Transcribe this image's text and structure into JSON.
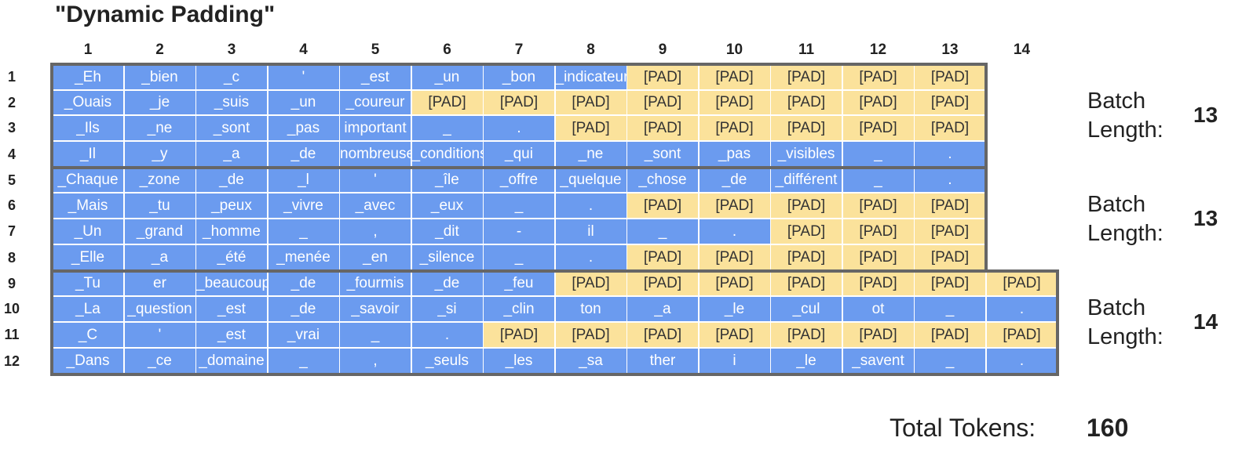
{
  "title": "\"Dynamic Padding\"",
  "colors": {
    "token": "#6b9bef",
    "pad": "#fbe29b",
    "border": "#666666"
  },
  "columns": [
    "1",
    "2",
    "3",
    "4",
    "5",
    "6",
    "7",
    "8",
    "9",
    "10",
    "11",
    "12",
    "13",
    "14"
  ],
  "rows": [
    {
      "label": "1",
      "tokens": [
        "_Eh",
        "_bien",
        "_c",
        "'",
        "_est",
        "_un",
        "_bon",
        "_indicateur",
        "[PAD]",
        "[PAD]",
        "[PAD]",
        "[PAD]",
        "[PAD]"
      ]
    },
    {
      "label": "2",
      "tokens": [
        "_Ouais",
        "_je",
        "_suis",
        "_un",
        "_coureur",
        "[PAD]",
        "[PAD]",
        "[PAD]",
        "[PAD]",
        "[PAD]",
        "[PAD]",
        "[PAD]",
        "[PAD]"
      ]
    },
    {
      "label": "3",
      "tokens": [
        "_Ils",
        "_ne",
        "_sont",
        "_pas",
        "important",
        "_",
        ".",
        "[PAD]",
        "[PAD]",
        "[PAD]",
        "[PAD]",
        "[PAD]",
        "[PAD]"
      ]
    },
    {
      "label": "4",
      "tokens": [
        "_Il",
        "_y",
        "_a",
        "_de",
        "nombreuses",
        "_conditions",
        "_qui",
        "_ne",
        "_sont",
        "_pas",
        "_visibles",
        "_",
        "."
      ]
    },
    {
      "label": "5",
      "tokens": [
        "_Chaque",
        "_zone",
        "_de",
        "_l",
        "'",
        "_île",
        "_offre",
        "_quelque",
        "_chose",
        "_de",
        "_différent",
        "_",
        "."
      ]
    },
    {
      "label": "6",
      "tokens": [
        "_Mais",
        "_tu",
        "_peux",
        "_vivre",
        "_avec",
        "_eux",
        "_",
        ".",
        "[PAD]",
        "[PAD]",
        "[PAD]",
        "[PAD]",
        "[PAD]"
      ]
    },
    {
      "label": "7",
      "tokens": [
        "_Un",
        "_grand",
        "_homme",
        "_",
        ",",
        "_dit",
        "-",
        "il",
        "_",
        ".",
        "[PAD]",
        "[PAD]",
        "[PAD]"
      ]
    },
    {
      "label": "8",
      "tokens": [
        "_Elle",
        "_a",
        "_été",
        "_menée",
        "_en",
        "_silence",
        "_",
        ".",
        "[PAD]",
        "[PAD]",
        "[PAD]",
        "[PAD]",
        "[PAD]"
      ]
    },
    {
      "label": "9",
      "tokens": [
        "_Tu",
        "er",
        "_beaucoup",
        "_de",
        "_fourmis",
        "_de",
        "_feu",
        "[PAD]",
        "[PAD]",
        "[PAD]",
        "[PAD]",
        "[PAD]",
        "[PAD]",
        "[PAD]"
      ]
    },
    {
      "label": "10",
      "tokens": [
        "_La",
        "_question",
        "_est",
        "_de",
        "_savoir",
        "_si",
        "_clin",
        "ton",
        "_a",
        "_le",
        "_cul",
        "ot",
        "_",
        "."
      ]
    },
    {
      "label": "11",
      "tokens": [
        "_C",
        "'",
        "_est",
        "_vrai",
        "_",
        ".",
        "[PAD]",
        "[PAD]",
        "[PAD]",
        "[PAD]",
        "[PAD]",
        "[PAD]",
        "[PAD]",
        "[PAD]"
      ]
    },
    {
      "label": "12",
      "tokens": [
        "_Dans",
        "_ce",
        "_domaine",
        "_",
        ",",
        "_seuls",
        "_les",
        "_sa",
        "ther",
        "i",
        "_le",
        "_savent",
        "_",
        "."
      ]
    }
  ],
  "batches": [
    {
      "label": "Batch\nLength:",
      "value": "13",
      "row_start": 0,
      "row_end": 3,
      "length": 13
    },
    {
      "label": "Batch\nLength:",
      "value": "13",
      "row_start": 4,
      "row_end": 7,
      "length": 13
    },
    {
      "label": "Batch\nLength:",
      "value": "14",
      "row_start": 8,
      "row_end": 11,
      "length": 14
    }
  ],
  "total": {
    "label": "Total Tokens:",
    "value": "160"
  }
}
